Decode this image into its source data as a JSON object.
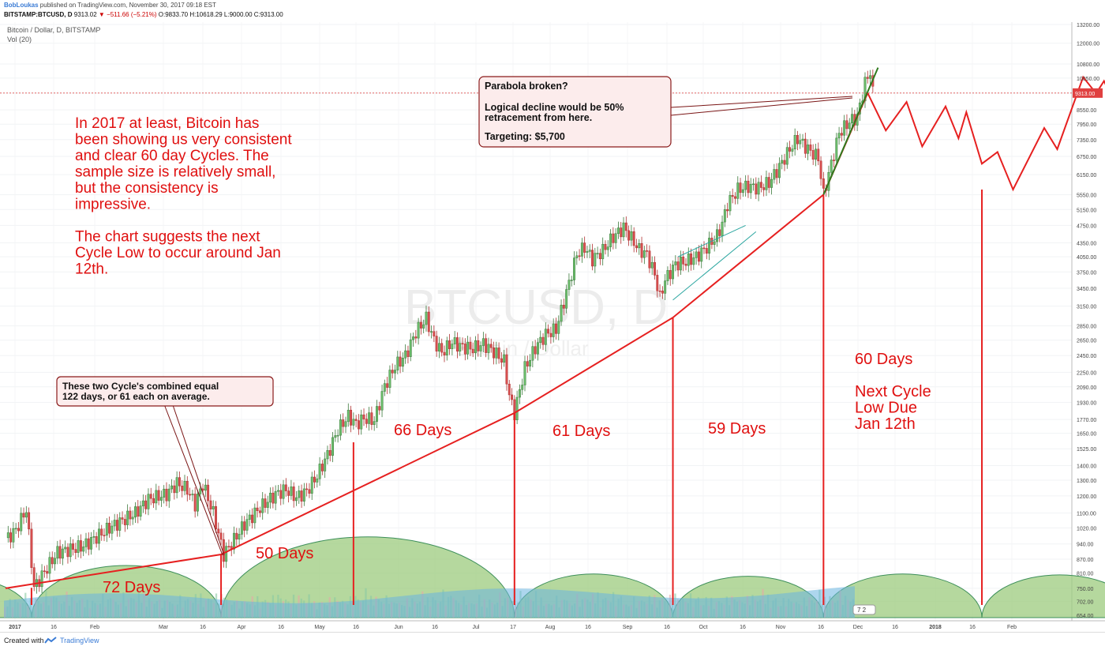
{
  "header": {
    "author": "BobLoukas",
    "published": "published on TradingView.com, November 30, 2017 09:18 EST",
    "symbol": "BITSTAMP:BTCUSD, D",
    "last": "9313.02",
    "change": "−511.66 (−5.21%)",
    "ohlc": "O:9833.70 H:10618.29 L:9000.00 C:9313.00"
  },
  "footer": {
    "created": "Created with",
    "brand": "TradingView"
  },
  "chart_data": {
    "type": "candlestick",
    "title": "Bitcoin / Dollar, D, BITSTAMP",
    "subtitle": "Vol (20)",
    "watermark": "BTCUSD, D",
    "watermark_sub": "Bitcoin / Dollar",
    "y_ticks": [
      "13200.00",
      "12000.00",
      "10800.00",
      "10050.00",
      "9313.00",
      "8550.00",
      "7950.00",
      "7350.00",
      "6750.00",
      "6150.00",
      "5550.00",
      "5150.00",
      "4750.00",
      "4350.00",
      "4050.00",
      "3750.00",
      "3450.00",
      "3150.00",
      "2850.00",
      "2650.00",
      "2450.00",
      "2250.00",
      "2090.00",
      "1930.00",
      "1770.00",
      "1650.00",
      "1525.00",
      "1400.00",
      "1300.00",
      "1200.00",
      "1100.00",
      "1020.00",
      "940.00",
      "870.00",
      "810.00",
      "750.00",
      "702.00",
      "654.00"
    ],
    "x_ticks": [
      "2017",
      "16",
      "Feb",
      "Mar",
      "16",
      "Apr",
      "16",
      "May",
      "16",
      "Jun",
      "16",
      "Jul",
      "17",
      "Aug",
      "16",
      "Sep",
      "16",
      "Oct",
      "16",
      "Nov",
      "16",
      "Dec",
      "16",
      "2018",
      "16",
      "Feb"
    ],
    "last_price": "9313.00",
    "cycle_lows": [
      {
        "date": "2017-01-11",
        "price": 752
      },
      {
        "date": "2017-03-25",
        "price": 891
      },
      {
        "date": "2017-07-16",
        "price": 1830
      },
      {
        "date": "2017-09-15",
        "price": 2972
      },
      {
        "date": "2017-11-12",
        "price": 5555
      },
      {
        "date": "2018-01-12",
        "price": 5700
      }
    ],
    "price_path": [
      [
        1,
        970
      ],
      [
        4,
        1010
      ],
      [
        8,
        1120
      ],
      [
        11,
        752
      ],
      [
        14,
        800
      ],
      [
        20,
        900
      ],
      [
        30,
        930
      ],
      [
        40,
        1020
      ],
      [
        50,
        1100
      ],
      [
        55,
        1180
      ],
      [
        62,
        1210
      ],
      [
        66,
        1280
      ],
      [
        70,
        1240
      ],
      [
        73,
        1150
      ],
      [
        76,
        1275
      ],
      [
        80,
        1100
      ],
      [
        84,
        891
      ],
      [
        88,
        960
      ],
      [
        92,
        1040
      ],
      [
        98,
        1130
      ],
      [
        104,
        1210
      ],
      [
        108,
        1240
      ],
      [
        112,
        1190
      ],
      [
        116,
        1230
      ],
      [
        120,
        1330
      ],
      [
        124,
        1480
      ],
      [
        128,
        1680
      ],
      [
        132,
        1800
      ],
      [
        135,
        1730
      ],
      [
        138,
        1780
      ],
      [
        142,
        1760
      ],
      [
        146,
        2100
      ],
      [
        150,
        2320
      ],
      [
        154,
        2450
      ],
      [
        158,
        2760
      ],
      [
        162,
        2960
      ],
      [
        165,
        2650
      ],
      [
        168,
        2490
      ],
      [
        172,
        2620
      ],
      [
        176,
        2560
      ],
      [
        180,
        2540
      ],
      [
        184,
        2600
      ],
      [
        188,
        2500
      ],
      [
        192,
        2380
      ],
      [
        194,
        2000
      ],
      [
        196,
        1830
      ],
      [
        200,
        2300
      ],
      [
        204,
        2550
      ],
      [
        208,
        2730
      ],
      [
        212,
        2800
      ],
      [
        216,
        3380
      ],
      [
        220,
        4100
      ],
      [
        223,
        4250
      ],
      [
        226,
        4000
      ],
      [
        230,
        4180
      ],
      [
        234,
        4480
      ],
      [
        238,
        4700
      ],
      [
        241,
        4450
      ],
      [
        244,
        4200
      ],
      [
        247,
        4100
      ],
      [
        250,
        3700
      ],
      [
        252,
        3290
      ],
      [
        254,
        3600
      ],
      [
        258,
        3900
      ],
      [
        262,
        3950
      ],
      [
        266,
        4050
      ],
      [
        270,
        4250
      ],
      [
        274,
        4500
      ],
      [
        276,
        4800
      ],
      [
        278,
        5300
      ],
      [
        282,
        5700
      ],
      [
        286,
        5800
      ],
      [
        290,
        5750
      ],
      [
        294,
        5900
      ],
      [
        298,
        6400
      ],
      [
        302,
        7000
      ],
      [
        305,
        7400
      ],
      [
        309,
        7000
      ],
      [
        313,
        6700
      ],
      [
        315,
        5555
      ],
      [
        318,
        6500
      ],
      [
        321,
        7600
      ],
      [
        325,
        8050
      ],
      [
        328,
        8250
      ],
      [
        331,
        9800
      ],
      [
        333,
        10400
      ],
      [
        334,
        9313
      ]
    ],
    "volume_bars": [
      78,
      62,
      85,
      71,
      95,
      66,
      88,
      74,
      102,
      69,
      91,
      80,
      108,
      75,
      97,
      83,
      115,
      79,
      99,
      86,
      121,
      77,
      104,
      90,
      118,
      82,
      110,
      73,
      96,
      88
    ],
    "volume_scale_max": 120,
    "projection_path": [
      [
        "2017-11-29",
        9313
      ],
      [
        "2017-12-06",
        7700
      ],
      [
        "2017-12-14",
        8900
      ],
      [
        "2017-12-20",
        7100
      ],
      [
        "2017-12-29",
        8700
      ],
      [
        "2018-01-03",
        7400
      ],
      [
        "2018-01-06",
        8450
      ],
      [
        "2018-01-12",
        6500
      ],
      [
        "2018-01-18",
        6900
      ],
      [
        "2018-01-24",
        5700
      ],
      [
        "2018-02-05",
        7800
      ],
      [
        "2018-02-10",
        7000
      ],
      [
        "2018-02-20",
        10100
      ],
      [
        "2018-02-25",
        9300
      ],
      [
        "2018-02-28",
        9900
      ],
      [
        "2018-03-03",
        9100
      ],
      [
        "2018-03-06",
        11100
      ]
    ],
    "uptrend_line": [
      [
        "2017-01-01",
        750
      ],
      [
        "2017-03-25",
        891
      ],
      [
        "2017-07-16",
        1830
      ],
      [
        "2017-09-15",
        2972
      ],
      [
        "2017-11-12",
        5555
      ],
      [
        "2017-11-29",
        9313
      ]
    ],
    "green_trendline": [
      [
        "2017-11-12",
        5555
      ],
      [
        "2017-12-03",
        10600
      ]
    ],
    "cycle_labels": [
      "72 Days",
      "50 Days",
      "66 Days",
      "61 Days",
      "59 Days"
    ],
    "side_text": [
      "60 Days",
      "",
      "Next Cycle",
      "Low Due",
      "Jan 12th"
    ],
    "commentary": [
      "In 2017 at least, Bitcoin has",
      "been showing us very consistent",
      "and clear 60 day Cycles. The",
      "sample size is relatively small,",
      "but the consistency is",
      "impressive.",
      "",
      "The chart suggests the next",
      "Cycle Low to occur around Jan",
      "12th."
    ],
    "callouts": [
      {
        "lines": [
          "These two Cycle's combined equal",
          "122 days, or 61 each on average."
        ]
      },
      {
        "lines": [
          "Parabola broken?",
          "",
          "Logical decline would be 50%",
          "retracement from here.",
          "",
          "Targeting:  $5,700"
        ]
      }
    ],
    "volume_arcs_count": 7,
    "grid": true
  }
}
